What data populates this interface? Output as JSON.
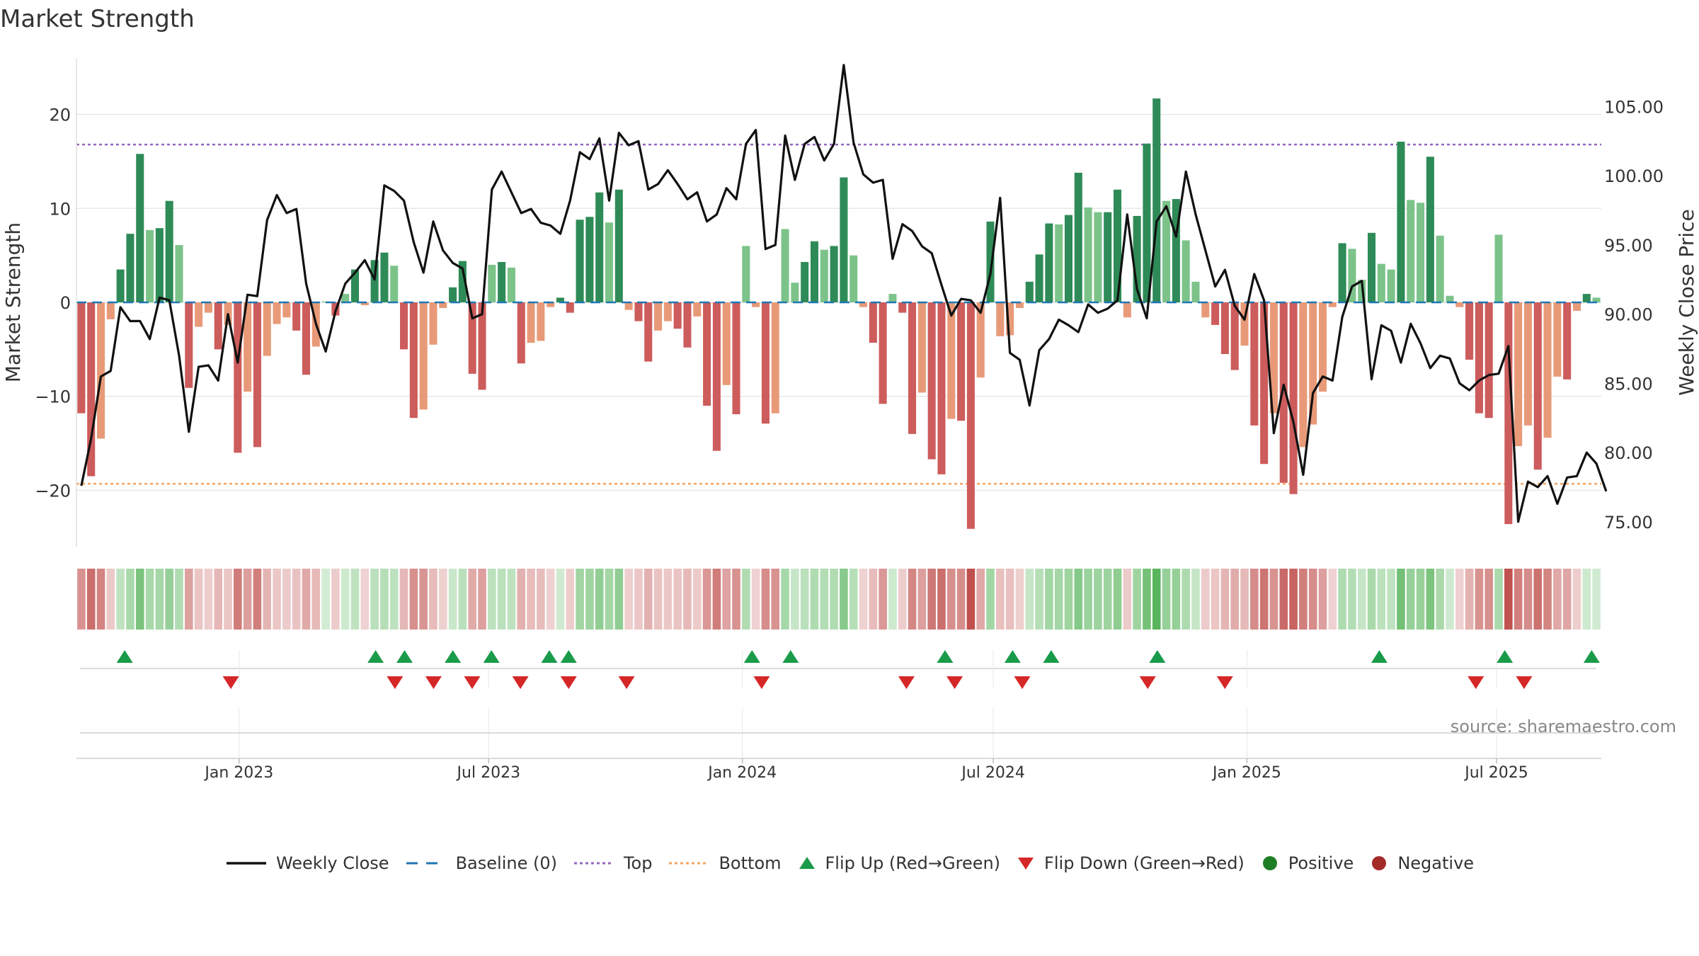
{
  "chart_data": {
    "type": "bar",
    "title": "Market Strength",
    "ylabel_left": "Market Strength",
    "ylabel_right": "Weekly Close Price",
    "source": "source: sharemaestro.com",
    "y_left_range": [
      -26,
      26
    ],
    "y_left_ticks": [
      20,
      10,
      0,
      -10,
      -20
    ],
    "y_left_tick_labels": [
      "20",
      "10",
      "0",
      "−10",
      "−20"
    ],
    "y_right_range": [
      73.2,
      108.5
    ],
    "y_right_ticks": [
      105,
      100,
      95,
      90,
      85,
      80,
      75
    ],
    "y_right_tick_labels": [
      "105.00",
      "100.00",
      "95.00",
      "90.00",
      "85.00",
      "80.00",
      "75.00"
    ],
    "top_level": 16.8,
    "bottom_level": -19.3,
    "date_start": "2022-09-05",
    "date_end": "2025-09-15",
    "x_ticks": [
      {
        "date": "2023-01-01",
        "label": "Jan 2023"
      },
      {
        "date": "2023-07-01",
        "label": "Jul 2023"
      },
      {
        "date": "2024-01-01",
        "label": "Jan 2024"
      },
      {
        "date": "2024-07-01",
        "label": "Jul 2024"
      },
      {
        "date": "2025-01-01",
        "label": "Jan 2025"
      },
      {
        "date": "2025-07-01",
        "label": "Jul 2025"
      }
    ],
    "strength": [
      -11.8,
      -18.5,
      -14.5,
      -1.8,
      3.5,
      7.3,
      15.8,
      7.7,
      7.9,
      10.8,
      6.1,
      -9.1,
      -2.6,
      -1.1,
      -5.0,
      -2.4,
      -16.0,
      -9.5,
      -15.4,
      -5.7,
      -2.3,
      -1.6,
      -3.0,
      -7.7,
      -4.7,
      0.1,
      -1.4,
      0.9,
      3.5,
      -0.3,
      4.5,
      5.3,
      3.9,
      -5.0,
      -12.3,
      -11.4,
      -4.5,
      -0.6,
      1.6,
      4.4,
      -7.6,
      -9.3,
      4.0,
      4.3,
      3.7,
      -6.5,
      -4.3,
      -4.1,
      -0.5,
      0.5,
      -1.1,
      8.8,
      9.1,
      11.7,
      8.5,
      12.0,
      -0.8,
      -2.0,
      -6.3,
      -3.0,
      -2.0,
      -2.8,
      -4.8,
      -1.5,
      -11.0,
      -15.8,
      -8.8,
      -11.9,
      6.0,
      -0.5,
      -12.9,
      -11.8,
      7.8,
      2.1,
      4.3,
      6.5,
      5.6,
      6.0,
      13.3,
      5.0,
      -0.5,
      -4.3,
      -10.8,
      0.9,
      -1.1,
      -14.0,
      -9.6,
      -16.7,
      -18.3,
      -12.4,
      -12.6,
      -24.1,
      -8.0,
      8.6,
      -3.6,
      -3.5,
      -0.6,
      2.2,
      5.1,
      8.4,
      8.3,
      9.3,
      13.8,
      10.1,
      9.6,
      9.6,
      12.0,
      -1.6,
      9.2,
      16.9,
      21.7,
      10.8,
      11.0,
      6.6,
      2.2,
      -1.6,
      -2.4,
      -5.5,
      -7.2,
      -4.6,
      -13.1,
      -17.2,
      -11.8,
      -19.2,
      -20.4,
      -15.4,
      -13.0,
      -9.5,
      -0.5,
      6.3,
      5.7,
      2.4,
      7.4,
      4.1,
      3.5,
      17.1,
      10.9,
      10.6,
      15.5,
      7.1,
      0.7,
      -0.5,
      -6.1,
      -11.8,
      -12.3,
      7.2,
      -23.6,
      -15.3,
      -13.1,
      -17.8,
      -14.4,
      -7.9,
      -8.2,
      -0.9,
      0.9,
      0.5
    ],
    "close": [
      77.6,
      81.0,
      85.5,
      85.9,
      90.5,
      89.5,
      89.5,
      88.2,
      91.2,
      91.0,
      87.0,
      81.5,
      86.2,
      86.3,
      85.2,
      90.0,
      86.5,
      91.4,
      91.3,
      96.8,
      98.6,
      97.3,
      97.6,
      92.2,
      89.3,
      87.3,
      90.2,
      92.2,
      93.0,
      93.9,
      92.5,
      99.3,
      98.9,
      98.2,
      95.2,
      93.0,
      96.7,
      94.6,
      93.7,
      93.3,
      89.7,
      90.0,
      99.0,
      100.3,
      98.8,
      97.3,
      97.6,
      96.6,
      96.4,
      95.8,
      98.2,
      101.7,
      101.2,
      102.7,
      98.2,
      103.1,
      102.2,
      102.5,
      99.0,
      99.4,
      100.4,
      99.4,
      98.3,
      98.8,
      96.7,
      97.2,
      99.1,
      98.3,
      102.3,
      103.3,
      94.7,
      95.0,
      102.9,
      99.7,
      102.3,
      102.8,
      101.1,
      102.3,
      108.0,
      102.4,
      100.1,
      99.5,
      99.7,
      94.0,
      96.5,
      96.0,
      94.9,
      94.4,
      92.1,
      89.9,
      91.1,
      91.0,
      90.1,
      92.9,
      98.4,
      87.2,
      86.7,
      83.4,
      87.4,
      88.2,
      89.6,
      89.2,
      88.7,
      90.7,
      90.1,
      90.4,
      91.0,
      97.2,
      91.8,
      89.7,
      96.7,
      97.8,
      95.6,
      100.3,
      97.2,
      94.6,
      92.0,
      93.2,
      90.6,
      89.6,
      92.9,
      91.0,
      81.4,
      84.9,
      82.2,
      78.4,
      84.3,
      85.5,
      85.2,
      89.8,
      92.0,
      92.4,
      85.3,
      89.2,
      88.8,
      86.5,
      89.3,
      87.9,
      86.1,
      87.0,
      86.8,
      85.0,
      84.5,
      85.2,
      85.6,
      85.7,
      87.7,
      75.0,
      77.9,
      77.5,
      78.3,
      76.3,
      78.2,
      78.3,
      80.0,
      79.2,
      77.2
    ],
    "flip_up_dates": [
      "2022-10-10",
      "2023-04-10",
      "2023-05-01",
      "2023-06-05",
      "2023-07-03",
      "2023-08-14",
      "2023-08-28",
      "2024-01-08",
      "2024-02-05",
      "2024-05-27",
      "2024-07-15",
      "2024-08-12",
      "2024-10-28",
      "2025-04-07",
      "2025-07-07",
      "2025-09-08"
    ],
    "flip_down_dates": [
      "2022-12-26",
      "2023-04-24",
      "2023-05-22",
      "2023-06-19",
      "2023-07-24",
      "2023-08-28",
      "2023-10-09",
      "2024-01-15",
      "2024-04-29",
      "2024-06-03",
      "2024-07-22",
      "2024-10-21",
      "2024-12-16",
      "2025-06-16",
      "2025-07-21"
    ],
    "colors": {
      "green_strong": "#2e8b57",
      "green_light": "#7cc38a",
      "red_strong": "#cd5c5c",
      "red_light": "#e89a78",
      "line": "#111111",
      "baseline": "#1f77b4",
      "top": "#9467bd",
      "bottom": "#f4a460",
      "flip_up": "#1a9b4a",
      "flip_down": "#d62728",
      "positive": "#1e7e25",
      "negative": "#a52a2a",
      "grid": "#e8e8e8",
      "axis_text": "#333333"
    },
    "legend": [
      {
        "kind": "line-solid",
        "label": "Weekly Close"
      },
      {
        "kind": "line-dash",
        "label": "Baseline (0)"
      },
      {
        "kind": "line-dot-top",
        "label": "Top"
      },
      {
        "kind": "line-dot-bottom",
        "label": "Bottom"
      },
      {
        "kind": "tri-up",
        "label": "Flip Up (Red→Green)"
      },
      {
        "kind": "tri-down",
        "label": "Flip Down (Green→Red)"
      },
      {
        "kind": "circle-pos",
        "label": "Positive"
      },
      {
        "kind": "circle-neg",
        "label": "Negative"
      }
    ]
  }
}
